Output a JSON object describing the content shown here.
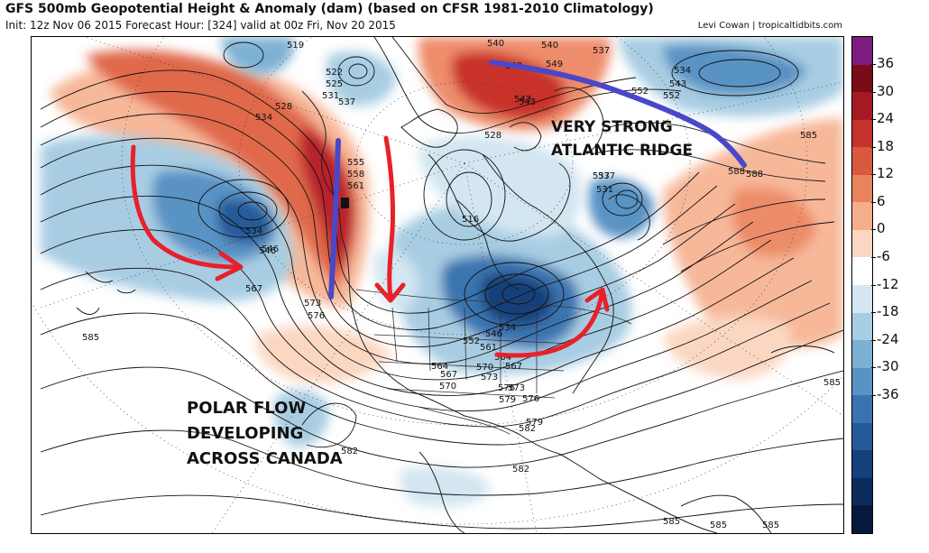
{
  "header": {
    "title": "GFS 500mb Geopotential Height & Anomaly (dam) (based on CFSR 1981-2010 Climatology)",
    "subtitle": "Init: 12z Nov 06 2015   Forecast Hour: [324]   valid at 00z Fri, Nov 20 2015",
    "credit": "Levi Cowan | tropicaltidbits.com"
  },
  "colorbar": {
    "labels": [
      "36",
      "30",
      "24",
      "18",
      "12",
      "6",
      "0",
      "-6",
      "-12",
      "-18",
      "-24",
      "-30",
      "-36"
    ],
    "colors": [
      "#7b1c7e",
      "#7a0b18",
      "#a51a22",
      "#c4332c",
      "#d8593e",
      "#e8835e",
      "#f4ae8c",
      "#fbd7c2",
      "#ffffff",
      "#d3e6f1",
      "#a8cde3",
      "#7db1d4",
      "#5893c4",
      "#3a74b0",
      "#255a99",
      "#153f7a",
      "#0a2a5a",
      "#06183b"
    ]
  },
  "contour_labels": {
    "items": [
      "519",
      "522",
      "525",
      "528",
      "531",
      "534",
      "537",
      "540",
      "543",
      "546",
      "549",
      "552",
      "555",
      "558",
      "561",
      "564",
      "567",
      "570",
      "573",
      "576",
      "579",
      "582",
      "585",
      "588",
      "516",
      "534",
      "546",
      "567",
      "573",
      "576",
      "585",
      "537",
      "531",
      "585",
      "588",
      "585",
      "582",
      "582",
      "579",
      "576",
      "573",
      "570",
      "567",
      "564",
      "561",
      "552",
      "546",
      "534",
      "528",
      "537",
      "543",
      "540",
      "549",
      "552",
      "537",
      "534",
      "543",
      "585",
      "585"
    ]
  },
  "annotations": {
    "atlantic_ridge": [
      "VERY STRONG",
      "ATLANTIC RIDGE"
    ],
    "polar_flow": [
      "POLAR FLOW",
      "DEVELOPING",
      "ACROSS CANADA"
    ]
  },
  "colors": {
    "arrow_red": "#e8202a",
    "line_blue": "#4a48c8"
  }
}
